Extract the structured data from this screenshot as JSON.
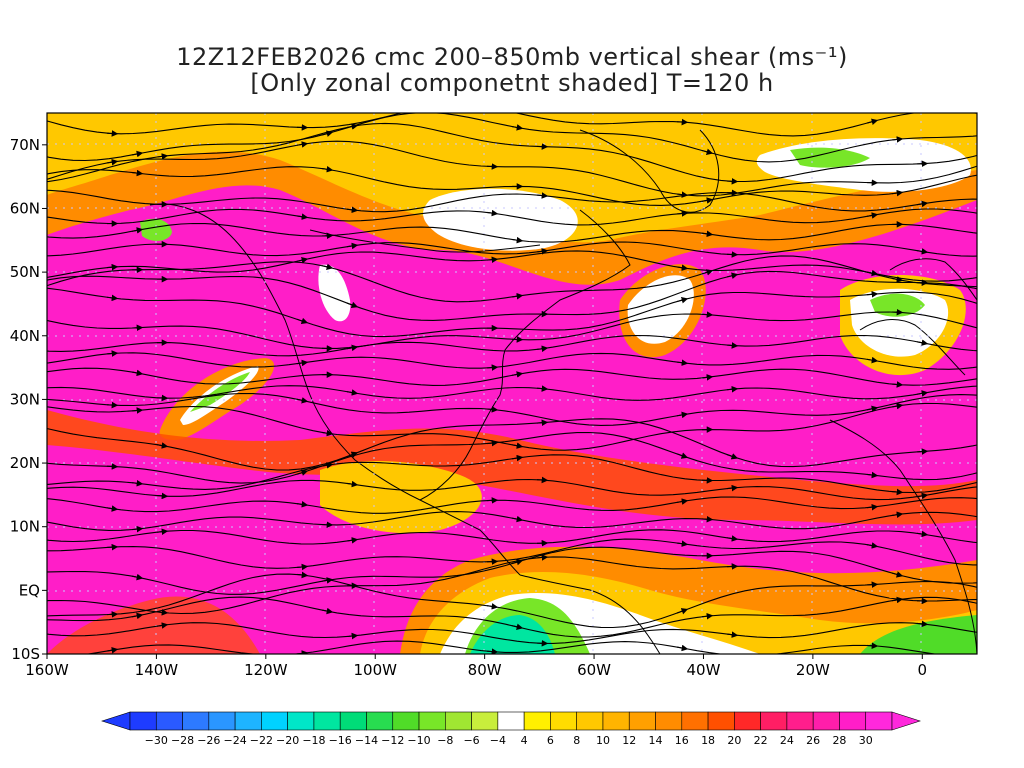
{
  "title": {
    "line1": "12Z12FEB2026 cmc 200–850mb vertical shear (ms⁻¹)",
    "line2": "[Only zonal componetnt shaded] T=120 h"
  },
  "map": {
    "lon_range": [
      -160,
      10
    ],
    "lat_range": [
      -10,
      75
    ],
    "lat_ticks": [
      "70N",
      "60N",
      "50N",
      "40N",
      "30N",
      "20N",
      "10N",
      "EQ",
      "10S"
    ],
    "lon_ticks": [
      "160W",
      "140W",
      "120W",
      "100W",
      "80W",
      "60W",
      "40W",
      "20W",
      "0"
    ],
    "grid": "dotted"
  },
  "colorbar": {
    "labels": [
      "-30",
      "-28",
      "-26",
      "-24",
      "-22",
      "-20",
      "-18",
      "-16",
      "-14",
      "-12",
      "-10",
      "-8",
      "-6",
      "-4",
      "4",
      "6",
      "8",
      "10",
      "12",
      "14",
      "16",
      "18",
      "20",
      "22",
      "24",
      "26",
      "28",
      "30"
    ],
    "colors": [
      "#1e3cff",
      "#2a5aff",
      "#2d7aff",
      "#2a96ff",
      "#1eb4ff",
      "#00d2ff",
      "#00e6c8",
      "#00e6a0",
      "#00dc78",
      "#28dc50",
      "#50dc28",
      "#78e628",
      "#a0e632",
      "#c8ee3c",
      "#ffffff",
      "#fff000",
      "#ffdc00",
      "#ffc800",
      "#ffb400",
      "#ffa000",
      "#ff8c00",
      "#ff7000",
      "#ff5000",
      "#ff2828",
      "#ff1e64",
      "#ff1e8c",
      "#ff1eaa",
      "#ff1ec8",
      "#ff28dc"
    ]
  }
}
